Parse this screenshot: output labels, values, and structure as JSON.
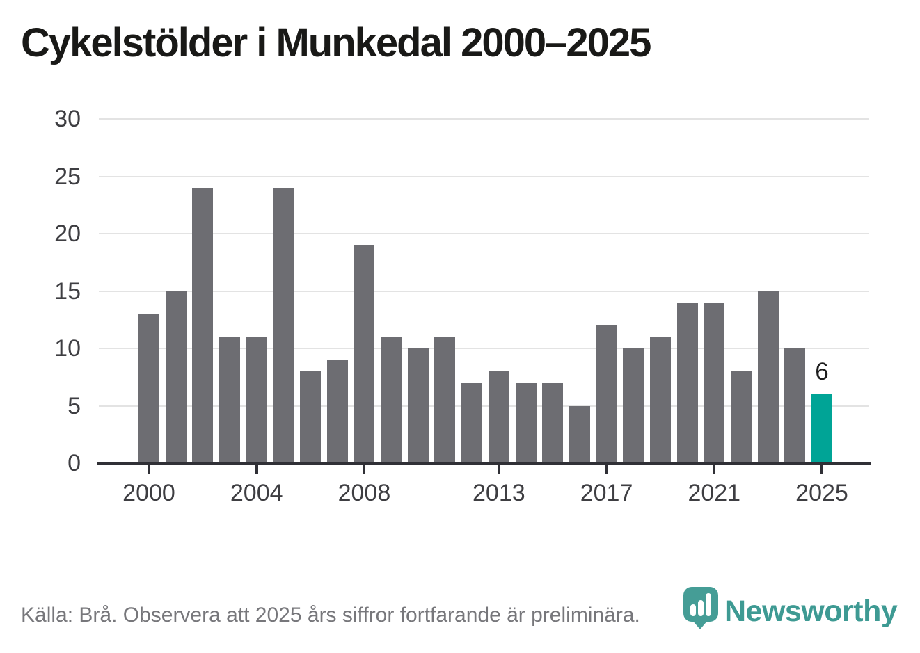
{
  "title": "Cykelstölder i Munkedal 2000–2025",
  "source_note": "Källa: Brå. Observera att 2025 års siffror fortfarande är preliminära.",
  "branding": {
    "logo_text": "Newsworthy",
    "logo_icon": "newsworthy-pin-barchart-icon"
  },
  "colors": {
    "background": "#ffffff",
    "bar": "#6d6d72",
    "highlight": "#00a496",
    "grid": "#e3e3e3",
    "axis": "#303036",
    "title_text": "#191917",
    "tick_text": "#3e3e42",
    "value_text": "#1d1d1d",
    "source_text": "#77777b",
    "brand_teal": "#3e9a93",
    "logo_icon_teal": "#459d96"
  },
  "chart_data": {
    "type": "bar",
    "title": "Cykelstölder i Munkedal 2000–2025",
    "xlabel": "",
    "ylabel": "",
    "categories": [
      2000,
      2001,
      2002,
      2003,
      2004,
      2005,
      2006,
      2007,
      2008,
      2009,
      2010,
      2011,
      2012,
      2013,
      2014,
      2015,
      2016,
      2017,
      2018,
      2019,
      2020,
      2021,
      2022,
      2023,
      2024,
      2025
    ],
    "values": [
      13,
      15,
      24,
      11,
      11,
      24,
      8,
      9,
      19,
      11,
      10,
      11,
      7,
      8,
      7,
      7,
      5,
      12,
      10,
      11,
      14,
      14,
      8,
      15,
      10,
      6
    ],
    "highlight_index": 25,
    "highlight_value_label": "6",
    "ylim": [
      0,
      30
    ],
    "yticks": [
      0,
      5,
      10,
      15,
      20,
      25,
      30
    ],
    "xticks": [
      2000,
      2004,
      2008,
      2013,
      2017,
      2021,
      2025
    ],
    "grid": "horizontal",
    "legend": "none"
  }
}
